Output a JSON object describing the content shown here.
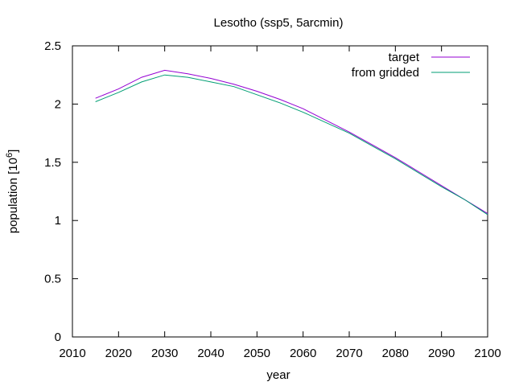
{
  "chart_data": {
    "type": "line",
    "title": "Lesotho (ssp5, 5arcmin)",
    "xlabel": "year",
    "ylabel_base": "population [10",
    "ylabel_exp": "6",
    "ylabel_close": "]",
    "xlim": [
      2010,
      2100
    ],
    "ylim": [
      0,
      2.5
    ],
    "xticks": [
      2010,
      2020,
      2030,
      2040,
      2050,
      2060,
      2070,
      2080,
      2090,
      2100
    ],
    "yticks": [
      0,
      0.5,
      1,
      1.5,
      2,
      2.5
    ],
    "ytick_labels": [
      "0",
      "0.5",
      "1",
      "1.5",
      "2",
      "2.5"
    ],
    "grid": false,
    "legend_position": "top-right",
    "series": [
      {
        "name": "target",
        "color": "#9400d3",
        "x": [
          2015,
          2020,
          2025,
          2030,
          2035,
          2040,
          2045,
          2050,
          2055,
          2060,
          2065,
          2070,
          2075,
          2080,
          2085,
          2090,
          2095,
          2100
        ],
        "y": [
          2.05,
          2.13,
          2.23,
          2.29,
          2.26,
          2.22,
          2.17,
          2.11,
          2.04,
          1.96,
          1.86,
          1.76,
          1.65,
          1.54,
          1.42,
          1.3,
          1.18,
          1.06
        ]
      },
      {
        "name": "from gridded",
        "color": "#009e73",
        "x": [
          2015,
          2020,
          2025,
          2030,
          2035,
          2040,
          2045,
          2050,
          2055,
          2060,
          2065,
          2070,
          2075,
          2080,
          2085,
          2090,
          2095,
          2100
        ],
        "y": [
          2.02,
          2.1,
          2.19,
          2.25,
          2.23,
          2.19,
          2.15,
          2.08,
          2.01,
          1.93,
          1.84,
          1.75,
          1.64,
          1.53,
          1.41,
          1.29,
          1.18,
          1.05
        ]
      }
    ]
  }
}
